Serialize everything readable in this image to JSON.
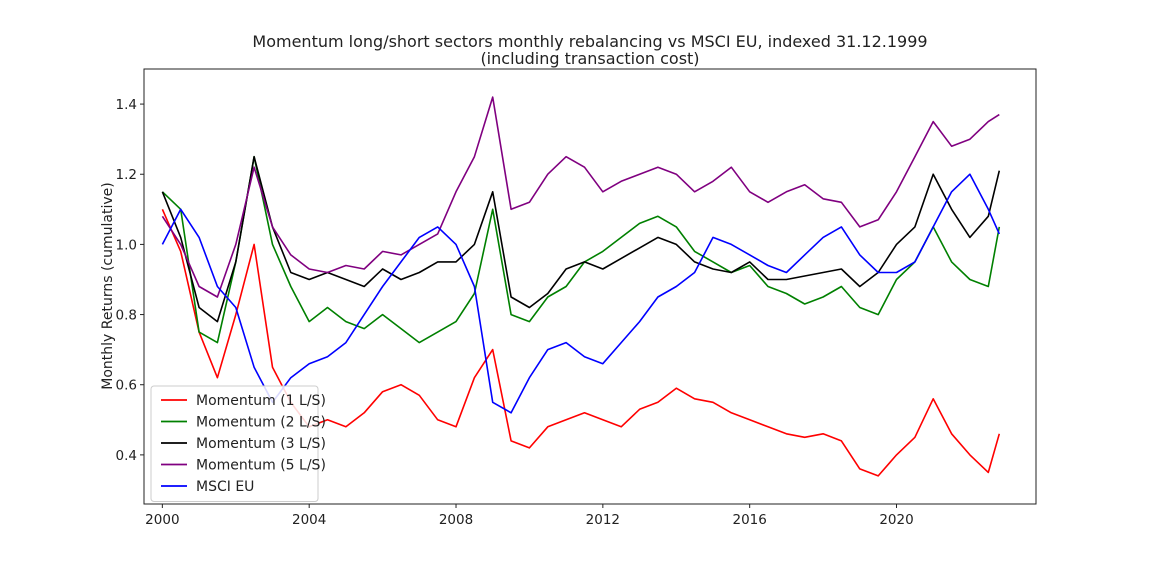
{
  "chart_data": {
    "type": "line",
    "title": "Momentum long/short sectors monthly rebalancing vs MSCI EU, indexed 31.12.1999",
    "subtitle": "(including transaction cost)",
    "xlabel": "",
    "ylabel": "Monthly Returns (cumulative)",
    "xlim": [
      1999.5,
      2023.8
    ],
    "ylim": [
      0.26,
      1.5
    ],
    "x_ticks": [
      2000,
      2004,
      2008,
      2012,
      2016,
      2020
    ],
    "x_tick_labels": [
      "2000",
      "2004",
      "2008",
      "2012",
      "2016",
      "2020"
    ],
    "y_ticks": [
      0.4,
      0.6,
      0.8,
      1.0,
      1.2,
      1.4
    ],
    "y_tick_labels": [
      "0.4",
      "0.6",
      "0.8",
      "1.0",
      "1.2",
      "1.4"
    ],
    "grid": false,
    "legend_position": "lower-left",
    "x": [
      2000.0,
      2000.5,
      2001.0,
      2001.5,
      2002.0,
      2002.5,
      2003.0,
      2003.5,
      2004.0,
      2004.5,
      2005.0,
      2005.5,
      2006.0,
      2006.5,
      2007.0,
      2007.5,
      2008.0,
      2008.5,
      2009.0,
      2009.5,
      2010.0,
      2010.5,
      2011.0,
      2011.5,
      2012.0,
      2012.5,
      2013.0,
      2013.5,
      2014.0,
      2014.5,
      2015.0,
      2015.5,
      2016.0,
      2016.5,
      2017.0,
      2017.5,
      2018.0,
      2018.5,
      2019.0,
      2019.5,
      2020.0,
      2020.5,
      2021.0,
      2021.5,
      2022.0,
      2022.5,
      2022.8
    ],
    "series": [
      {
        "name": "Momentum (1 L/S)",
        "color": "#ff0000",
        "values": [
          1.1,
          0.98,
          0.75,
          0.62,
          0.8,
          1.0,
          0.65,
          0.55,
          0.48,
          0.5,
          0.48,
          0.52,
          0.58,
          0.6,
          0.57,
          0.5,
          0.48,
          0.62,
          0.7,
          0.44,
          0.42,
          0.48,
          0.5,
          0.52,
          0.5,
          0.48,
          0.53,
          0.55,
          0.59,
          0.56,
          0.55,
          0.52,
          0.5,
          0.48,
          0.46,
          0.45,
          0.46,
          0.44,
          0.36,
          0.34,
          0.4,
          0.45,
          0.56,
          0.46,
          0.4,
          0.35,
          0.46
        ]
      },
      {
        "name": "Momentum (2 L/S)",
        "color": "#008000",
        "values": [
          1.15,
          1.1,
          0.75,
          0.72,
          0.95,
          1.25,
          1.0,
          0.88,
          0.78,
          0.82,
          0.78,
          0.76,
          0.8,
          0.76,
          0.72,
          0.75,
          0.78,
          0.86,
          1.1,
          0.8,
          0.78,
          0.85,
          0.88,
          0.95,
          0.98,
          1.02,
          1.06,
          1.08,
          1.05,
          0.98,
          0.95,
          0.92,
          0.94,
          0.88,
          0.86,
          0.83,
          0.85,
          0.88,
          0.82,
          0.8,
          0.9,
          0.95,
          1.05,
          0.95,
          0.9,
          0.88,
          1.05
        ]
      },
      {
        "name": "Momentum (3 L/S)",
        "color": "#000000",
        "values": [
          1.15,
          1.02,
          0.82,
          0.78,
          0.95,
          1.25,
          1.05,
          0.92,
          0.9,
          0.92,
          0.9,
          0.88,
          0.93,
          0.9,
          0.92,
          0.95,
          0.95,
          1.0,
          1.15,
          0.85,
          0.82,
          0.86,
          0.93,
          0.95,
          0.93,
          0.96,
          0.99,
          1.02,
          1.0,
          0.95,
          0.93,
          0.92,
          0.95,
          0.9,
          0.9,
          0.91,
          0.92,
          0.93,
          0.88,
          0.92,
          1.0,
          1.05,
          1.2,
          1.1,
          1.02,
          1.08,
          1.21
        ]
      },
      {
        "name": "Momentum (5 L/S)",
        "color": "#800080",
        "values": [
          1.08,
          1.0,
          0.88,
          0.85,
          1.0,
          1.22,
          1.05,
          0.97,
          0.93,
          0.92,
          0.94,
          0.93,
          0.98,
          0.97,
          1.0,
          1.03,
          1.15,
          1.25,
          1.42,
          1.1,
          1.12,
          1.2,
          1.25,
          1.22,
          1.15,
          1.18,
          1.2,
          1.22,
          1.2,
          1.15,
          1.18,
          1.22,
          1.15,
          1.12,
          1.15,
          1.17,
          1.13,
          1.12,
          1.05,
          1.07,
          1.15,
          1.25,
          1.35,
          1.28,
          1.3,
          1.35,
          1.37
        ]
      },
      {
        "name": "MSCI EU",
        "color": "#0000ff",
        "values": [
          1.0,
          1.1,
          1.02,
          0.88,
          0.82,
          0.65,
          0.55,
          0.62,
          0.66,
          0.68,
          0.72,
          0.8,
          0.88,
          0.95,
          1.02,
          1.05,
          1.0,
          0.88,
          0.55,
          0.52,
          0.62,
          0.7,
          0.72,
          0.68,
          0.66,
          0.72,
          0.78,
          0.85,
          0.88,
          0.92,
          1.02,
          1.0,
          0.97,
          0.94,
          0.92,
          0.97,
          1.02,
          1.05,
          0.97,
          0.92,
          0.92,
          0.95,
          1.05,
          1.15,
          1.2,
          1.1,
          1.03
        ]
      }
    ]
  }
}
